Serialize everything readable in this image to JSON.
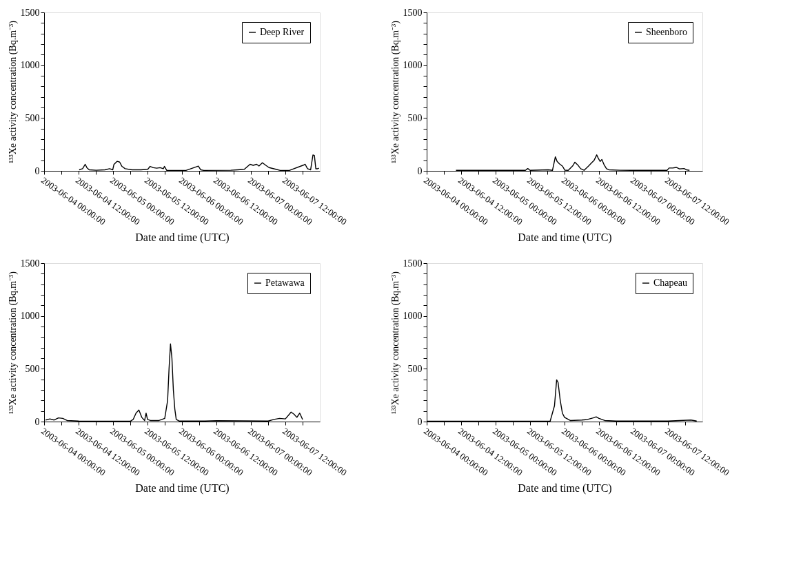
{
  "chart_data": [
    {
      "type": "line",
      "xlabel": "Date and time (UTC)",
      "ylabel": "¹³³Xe activity concentration (Bq.m⁻³)",
      "legend": "top right",
      "grid": false,
      "marker": "none",
      "line_style": "solid",
      "xlim": [
        "2003-06-04T00:00",
        "2003-06-08T00:00"
      ],
      "xticks": [
        {
          "value": "2003-06-04T00:00",
          "label": "2003-06-04 00:00:00"
        },
        {
          "value": "2003-06-04T06:00",
          "label": null
        },
        {
          "value": "2003-06-04T12:00",
          "label": "2003-06-04 12:00:00"
        },
        {
          "value": "2003-06-04T18:00",
          "label": null
        },
        {
          "value": "2003-06-05T00:00",
          "label": "2003-06-05 00:00:00"
        },
        {
          "value": "2003-06-05T06:00",
          "label": null
        },
        {
          "value": "2003-06-05T12:00",
          "label": "2003-06-05 12:00:00"
        },
        {
          "value": "2003-06-05T18:00",
          "label": null
        },
        {
          "value": "2003-06-06T00:00",
          "label": "2003-06-06 00:00:00"
        },
        {
          "value": "2003-06-06T06:00",
          "label": null
        },
        {
          "value": "2003-06-06T12:00",
          "label": "2003-06-06 12:00:00"
        },
        {
          "value": "2003-06-06T18:00",
          "label": null
        },
        {
          "value": "2003-06-07T00:00",
          "label": "2003-06-07 00:00:00"
        },
        {
          "value": "2003-06-07T06:00",
          "label": null
        },
        {
          "value": "2003-06-07T12:00",
          "label": "2003-06-07 12:00:00"
        },
        {
          "value": "2003-06-07T18:00",
          "label": null
        }
      ],
      "ylim": [
        0,
        1500
      ],
      "yticks": [
        0,
        {
          "value": 100,
          "label": null
        },
        {
          "value": 200,
          "label": null
        },
        {
          "value": 300,
          "label": null
        },
        {
          "value": 400,
          "label": null
        },
        500,
        {
          "value": 600,
          "label": null
        },
        {
          "value": 700,
          "label": null
        },
        {
          "value": 800,
          "label": null
        },
        {
          "value": 900,
          "label": null
        },
        1000,
        {
          "value": 1100,
          "label": null
        },
        {
          "value": 1200,
          "label": null
        },
        {
          "value": 1300,
          "label": null
        },
        {
          "value": 1400,
          "label": null
        },
        1500
      ],
      "series": [
        {
          "name": "Deep River",
          "color": "#000000",
          "x": [
            "2003-06-04T12:12",
            "2003-06-04T13:24",
            "2003-06-04T14:18",
            "2003-06-04T14:54",
            "2003-06-04T15:42",
            "2003-06-04T18:06",
            "2003-06-04T21:12",
            "2003-06-04T22:48",
            "2003-06-04T23:54",
            "2003-06-05T00:18",
            "2003-06-05T01:24",
            "2003-06-05T02:18",
            "2003-06-05T03:06",
            "2003-06-05T04:12",
            "2003-06-05T06:36",
            "2003-06-05T09:42",
            "2003-06-05T12:06",
            "2003-06-05T12:54",
            "2003-06-05T14:00",
            "2003-06-05T15:12",
            "2003-06-05T16:24",
            "2003-06-05T17:30",
            "2003-06-05T17:54",
            "2003-06-05T18:42",
            "2003-06-06T00:12",
            "2003-06-06T01:24",
            "2003-06-06T05:42",
            "2003-06-06T06:30",
            "2003-06-06T07:36",
            "2003-06-06T17:00",
            "2003-06-06T19:24",
            "2003-06-06T21:42",
            "2003-06-06T23:42",
            "2003-06-07T00:48",
            "2003-06-07T02:00",
            "2003-06-07T02:48",
            "2003-06-07T04:00",
            "2003-06-07T05:12",
            "2003-06-07T06:18",
            "2003-06-07T08:42",
            "2003-06-07T10:12",
            "2003-06-07T13:00",
            "2003-06-07T13:24",
            "2003-06-07T18:06",
            "2003-06-07T18:54",
            "2003-06-07T19:42",
            "2003-06-07T20:48",
            "2003-06-07T21:36",
            "2003-06-07T22:06",
            "2003-06-07T22:36",
            "2003-06-07T23:12",
            "2003-06-07T23:42"
          ],
          "values": [
            10,
            20,
            62,
            30,
            10,
            6,
            10,
            20,
            10,
            60,
            90,
            83,
            42,
            20,
            10,
            10,
            15,
            42,
            30,
            25,
            30,
            20,
            42,
            4,
            4,
            4,
            45,
            10,
            4,
            6,
            10,
            15,
            62,
            52,
            62,
            46,
            77,
            52,
            31,
            15,
            4,
            4,
            4,
            52,
            62,
            20,
            10,
            150,
            146,
            20,
            20,
            25
          ]
        }
      ]
    },
    {
      "type": "line",
      "xlabel": "Date and time (UTC)",
      "ylabel": "¹³³Xe activity concentration (Bq.m⁻³)",
      "legend": "top right",
      "grid": false,
      "marker": "none",
      "line_style": "solid",
      "xlim": [
        "2003-06-04T00:00",
        "2003-06-08T00:00"
      ],
      "xticks": [
        {
          "value": "2003-06-04T00:00",
          "label": "2003-06-04 00:00:00"
        },
        {
          "value": "2003-06-04T06:00",
          "label": null
        },
        {
          "value": "2003-06-04T12:00",
          "label": "2003-06-04 12:00:00"
        },
        {
          "value": "2003-06-04T18:00",
          "label": null
        },
        {
          "value": "2003-06-05T00:00",
          "label": "2003-06-05 00:00:00"
        },
        {
          "value": "2003-06-05T06:00",
          "label": null
        },
        {
          "value": "2003-06-05T12:00",
          "label": "2003-06-05 12:00:00"
        },
        {
          "value": "2003-06-05T18:00",
          "label": null
        },
        {
          "value": "2003-06-06T00:00",
          "label": "2003-06-06 00:00:00"
        },
        {
          "value": "2003-06-06T06:00",
          "label": null
        },
        {
          "value": "2003-06-06T12:00",
          "label": "2003-06-06 12:00:00"
        },
        {
          "value": "2003-06-06T18:00",
          "label": null
        },
        {
          "value": "2003-06-07T00:00",
          "label": "2003-06-07 00:00:00"
        },
        {
          "value": "2003-06-07T06:00",
          "label": null
        },
        {
          "value": "2003-06-07T12:00",
          "label": "2003-06-07 12:00:00"
        },
        {
          "value": "2003-06-07T18:00",
          "label": null
        }
      ],
      "ylim": [
        0,
        1500
      ],
      "yticks": [
        0,
        {
          "value": 100,
          "label": null
        },
        {
          "value": 200,
          "label": null
        },
        {
          "value": 300,
          "label": null
        },
        {
          "value": 400,
          "label": null
        },
        500,
        {
          "value": 600,
          "label": null
        },
        {
          "value": 700,
          "label": null
        },
        {
          "value": 800,
          "label": null
        },
        {
          "value": 900,
          "label": null
        },
        1000,
        {
          "value": 1100,
          "label": null
        },
        {
          "value": 1200,
          "label": null
        },
        {
          "value": 1300,
          "label": null
        },
        {
          "value": 1400,
          "label": null
        },
        1500
      ],
      "series": [
        {
          "name": "Sheenboro",
          "color": "#000000",
          "x": [
            "2003-06-04T10:12",
            "2003-06-04T20:18",
            "2003-06-05T10:24",
            "2003-06-05T11:12",
            "2003-06-05T12:00",
            "2003-06-05T18:18",
            "2003-06-05T19:48",
            "2003-06-05T20:48",
            "2003-06-05T21:24",
            "2003-06-05T22:12",
            "2003-06-05T23:18",
            "2003-06-06T00:06",
            "2003-06-06T01:18",
            "2003-06-06T02:54",
            "2003-06-06T03:36",
            "2003-06-06T04:36",
            "2003-06-06T05:36",
            "2003-06-06T06:48",
            "2003-06-06T08:18",
            "2003-06-06T09:30",
            "2003-06-06T10:18",
            "2003-06-06T11:12",
            "2003-06-06T11:54",
            "2003-06-06T12:24",
            "2003-06-06T13:00",
            "2003-06-06T13:48",
            "2003-06-06T14:36",
            "2003-06-06T15:24",
            "2003-06-06T19:18",
            "2003-06-06T23:12",
            "2003-06-07T03:06",
            "2003-06-07T11:42",
            "2003-06-07T12:24",
            "2003-06-07T13:42",
            "2003-06-07T14:54",
            "2003-06-07T16:00",
            "2003-06-07T17:36",
            "2003-06-07T18:24",
            "2003-06-07T19:30"
          ],
          "values": [
            5,
            5,
            5,
            22,
            5,
            10,
            5,
            133,
            89,
            67,
            44,
            6,
            5,
            49,
            82,
            56,
            20,
            5,
            44,
            78,
            100,
            151,
            111,
            89,
            107,
            56,
            20,
            10,
            6,
            5,
            5,
            5,
            27,
            27,
            33,
            18,
            22,
            10,
            5
          ]
        }
      ]
    },
    {
      "type": "line",
      "xlabel": "Date and time (UTC)",
      "ylabel": "¹³³Xe activity concentration (Bq.m⁻³)",
      "legend": "top right",
      "grid": false,
      "marker": "none",
      "line_style": "solid",
      "xlim": [
        "2003-06-04T00:00",
        "2003-06-08T00:00"
      ],
      "xticks": [
        {
          "value": "2003-06-04T00:00",
          "label": "2003-06-04 00:00:00"
        },
        {
          "value": "2003-06-04T06:00",
          "label": null
        },
        {
          "value": "2003-06-04T12:00",
          "label": "2003-06-04 12:00:00"
        },
        {
          "value": "2003-06-04T18:00",
          "label": null
        },
        {
          "value": "2003-06-05T00:00",
          "label": "2003-06-05 00:00:00"
        },
        {
          "value": "2003-06-05T06:00",
          "label": null
        },
        {
          "value": "2003-06-05T12:00",
          "label": "2003-06-05 12:00:00"
        },
        {
          "value": "2003-06-05T18:00",
          "label": null
        },
        {
          "value": "2003-06-06T00:00",
          "label": "2003-06-06 00:00:00"
        },
        {
          "value": "2003-06-06T06:00",
          "label": null
        },
        {
          "value": "2003-06-06T12:00",
          "label": "2003-06-06 12:00:00"
        },
        {
          "value": "2003-06-06T18:00",
          "label": null
        },
        {
          "value": "2003-06-07T00:00",
          "label": "2003-06-07 00:00:00"
        },
        {
          "value": "2003-06-07T06:00",
          "label": null
        },
        {
          "value": "2003-06-07T12:00",
          "label": "2003-06-07 12:00:00"
        },
        {
          "value": "2003-06-07T18:00",
          "label": null
        }
      ],
      "ylim": [
        0,
        1500
      ],
      "yticks": [
        0,
        {
          "value": 100,
          "label": null
        },
        {
          "value": 200,
          "label": null
        },
        {
          "value": 300,
          "label": null
        },
        {
          "value": 400,
          "label": null
        },
        500,
        {
          "value": 600,
          "label": null
        },
        {
          "value": 700,
          "label": null
        },
        {
          "value": 800,
          "label": null
        },
        {
          "value": 900,
          "label": null
        },
        1000,
        {
          "value": 1100,
          "label": null
        },
        {
          "value": 1200,
          "label": null
        },
        {
          "value": 1300,
          "label": null
        },
        {
          "value": 1400,
          "label": null
        },
        1500
      ],
      "series": [
        {
          "name": "Petawawa",
          "color": "#000000",
          "x": [
            "2003-06-04T00:30",
            "2003-06-04T02:00",
            "2003-06-04T03:30",
            "2003-06-04T05:00",
            "2003-06-04T06:30",
            "2003-06-04T08:00",
            "2003-06-04T12:00",
            "2003-06-04T20:00",
            "2003-06-05T06:00",
            "2003-06-05T07:00",
            "2003-06-05T08:00",
            "2003-06-05T09:00",
            "2003-06-05T10:00",
            "2003-06-05T11:00",
            "2003-06-05T11:30",
            "2003-06-05T12:00",
            "2003-06-05T13:00",
            "2003-06-05T16:00",
            "2003-06-05T18:00",
            "2003-06-05T19:00",
            "2003-06-05T19:30",
            "2003-06-05T20:00",
            "2003-06-05T20:30",
            "2003-06-05T21:00",
            "2003-06-05T21:30",
            "2003-06-05T22:00",
            "2003-06-05T23:00",
            "2003-06-06T08:00",
            "2003-06-06T12:00",
            "2003-06-07T06:00",
            "2003-06-07T08:00",
            "2003-06-07T10:00",
            "2003-06-07T12:00",
            "2003-06-07T14:00",
            "2003-06-07T15:00",
            "2003-06-07T16:00",
            "2003-06-07T17:00",
            "2003-06-07T18:00"
          ],
          "values": [
            15,
            25,
            15,
            35,
            30,
            10,
            5,
            3,
            3,
            20,
            80,
            110,
            40,
            10,
            80,
            20,
            10,
            10,
            30,
            200,
            500,
            735,
            600,
            300,
            120,
            20,
            5,
            5,
            8,
            5,
            20,
            30,
            25,
            90,
            70,
            40,
            80,
            20
          ]
        }
      ]
    },
    {
      "type": "line",
      "xlabel": "Date and time (UTC)",
      "ylabel": "¹³³Xe activity concentration (Bq.m⁻³)",
      "legend": "top right",
      "grid": false,
      "marker": "none",
      "line_style": "solid",
      "xlim": [
        "2003-06-04T00:00",
        "2003-06-08T00:00"
      ],
      "xticks": [
        {
          "value": "2003-06-04T00:00",
          "label": "2003-06-04 00:00:00"
        },
        {
          "value": "2003-06-04T06:00",
          "label": null
        },
        {
          "value": "2003-06-04T12:00",
          "label": "2003-06-04 12:00:00"
        },
        {
          "value": "2003-06-04T18:00",
          "label": null
        },
        {
          "value": "2003-06-05T00:00",
          "label": "2003-06-05 00:00:00"
        },
        {
          "value": "2003-06-05T06:00",
          "label": null
        },
        {
          "value": "2003-06-05T12:00",
          "label": "2003-06-05 12:00:00"
        },
        {
          "value": "2003-06-05T18:00",
          "label": null
        },
        {
          "value": "2003-06-06T00:00",
          "label": "2003-06-06 00:00:00"
        },
        {
          "value": "2003-06-06T06:00",
          "label": null
        },
        {
          "value": "2003-06-06T12:00",
          "label": "2003-06-06 12:00:00"
        },
        {
          "value": "2003-06-06T18:00",
          "label": null
        },
        {
          "value": "2003-06-07T00:00",
          "label": "2003-06-07 00:00:00"
        },
        {
          "value": "2003-06-07T06:00",
          "label": null
        },
        {
          "value": "2003-06-07T12:00",
          "label": "2003-06-07 12:00:00"
        },
        {
          "value": "2003-06-07T18:00",
          "label": null
        }
      ],
      "ylim": [
        0,
        1500
      ],
      "yticks": [
        0,
        {
          "value": 100,
          "label": null
        },
        {
          "value": 200,
          "label": null
        },
        {
          "value": 300,
          "label": null
        },
        {
          "value": 400,
          "label": null
        },
        500,
        {
          "value": 600,
          "label": null
        },
        {
          "value": 700,
          "label": null
        },
        {
          "value": 800,
          "label": null
        },
        {
          "value": 900,
          "label": null
        },
        1000,
        {
          "value": 1100,
          "label": null
        },
        {
          "value": 1200,
          "label": null
        },
        {
          "value": 1300,
          "label": null
        },
        {
          "value": 1400,
          "label": null
        },
        1500
      ],
      "series": [
        {
          "name": "Chapeau",
          "color": "#000000",
          "x": [
            "2003-06-04T00:00",
            "2003-06-05T12:00",
            "2003-06-05T19:00",
            "2003-06-05T20:30",
            "2003-06-05T21:15",
            "2003-06-05T21:45",
            "2003-06-05T22:30",
            "2003-06-05T23:15",
            "2003-06-06T00:00",
            "2003-06-06T02:00",
            "2003-06-06T06:00",
            "2003-06-06T08:00",
            "2003-06-06T10:00",
            "2003-06-06T11:00",
            "2003-06-06T12:00",
            "2003-06-06T14:00",
            "2003-06-06T18:00",
            "2003-06-07T12:00",
            "2003-06-07T20:00",
            "2003-06-07T21:00",
            "2003-06-07T22:00"
          ],
          "values": [
            3,
            3,
            5,
            150,
            395,
            370,
            200,
            80,
            40,
            10,
            15,
            20,
            35,
            45,
            30,
            10,
            5,
            5,
            15,
            10,
            5
          ]
        }
      ]
    }
  ]
}
